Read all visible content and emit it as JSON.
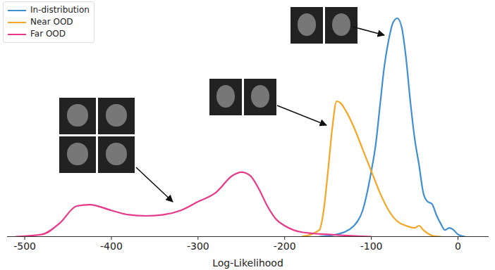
{
  "chart_data": {
    "type": "line",
    "x_label": "Log-Likelihood",
    "xlim": [
      -520,
      35
    ],
    "xticks": [
      -500,
      -400,
      -300,
      -200,
      -100,
      0
    ],
    "ylim": [
      0,
      1.05
    ],
    "tick_labels": "x",
    "legend": "top-left",
    "series": [
      {
        "name": "In-distribution",
        "color": "#3f8fd2",
        "x": [
          -160,
          -140,
          -120,
          -110,
          -100,
          -95,
          -90,
          -85,
          -80,
          -75,
          -70,
          -65,
          -60,
          -55,
          -50,
          -45,
          -40,
          -35,
          -30,
          -25,
          -20,
          -15,
          -10,
          -5,
          0,
          8
        ],
        "values": [
          0,
          0.01,
          0.05,
          0.12,
          0.3,
          0.42,
          0.6,
          0.78,
          0.9,
          0.98,
          1.0,
          0.96,
          0.82,
          0.62,
          0.45,
          0.33,
          0.2,
          0.16,
          0.15,
          0.1,
          0.06,
          0.03,
          0.04,
          0.03,
          0.01,
          0
        ]
      },
      {
        "name": "Near OOD",
        "color": "#f5a623",
        "x": [
          -180,
          -160,
          -155,
          -150,
          -145,
          -140,
          -135,
          -130,
          -120,
          -110,
          -100,
          -90,
          -80,
          -70,
          -60,
          -50,
          -45,
          -40,
          -30,
          -20
        ],
        "values": [
          0,
          0.03,
          0.12,
          0.3,
          0.5,
          0.62,
          0.61,
          0.58,
          0.5,
          0.4,
          0.3,
          0.2,
          0.12,
          0.07,
          0.05,
          0.04,
          0.05,
          0.03,
          0.005,
          0
        ]
      },
      {
        "name": "Far OOD",
        "color": "#e8388a",
        "x": [
          -510,
          -480,
          -460,
          -440,
          -425,
          -400,
          -380,
          -360,
          -340,
          -320,
          -300,
          -280,
          -260,
          -250,
          -240,
          -230,
          -220,
          -210,
          -200,
          -180,
          -150,
          -120,
          -100
        ],
        "values": [
          0,
          0.01,
          0.06,
          0.14,
          0.146,
          0.12,
          0.1,
          0.095,
          0.1,
          0.12,
          0.16,
          0.2,
          0.28,
          0.295,
          0.28,
          0.22,
          0.14,
          0.08,
          0.05,
          0.02,
          0.01,
          0.003,
          0
        ]
      }
    ]
  }
}
